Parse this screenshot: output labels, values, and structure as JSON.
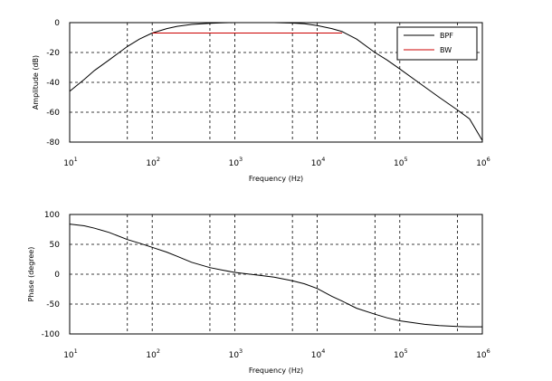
{
  "chart_data": [
    {
      "type": "line",
      "xlabel": "Frequency (Hz)",
      "ylabel": "Amplitude (dB)",
      "xscale": "log",
      "xlim": [
        10,
        1000000
      ],
      "ylim": [
        -80,
        0
      ],
      "grid": true,
      "x_ticks": [
        {
          "base": "10",
          "exp": "1"
        },
        {
          "base": "10",
          "exp": "2"
        },
        {
          "base": "10",
          "exp": "3"
        },
        {
          "base": "10",
          "exp": "4"
        },
        {
          "base": "10",
          "exp": "5"
        },
        {
          "base": "10",
          "exp": "6"
        }
      ],
      "y_ticks": [
        "0",
        "-20",
        "-40",
        "-60",
        "-80"
      ],
      "legend": {
        "position": "top-right",
        "entries": [
          "BPF",
          "BW"
        ]
      },
      "series": [
        {
          "name": "BPF",
          "color": "#000000",
          "x": [
            10,
            15,
            20,
            30,
            50,
            70,
            100,
            150,
            200,
            300,
            500,
            700,
            1000,
            2000,
            3000,
            5000,
            7000,
            10000,
            15000,
            20000,
            30000,
            50000,
            70000,
            100000,
            200000,
            300000,
            500000,
            700000,
            1000000
          ],
          "y": [
            -46,
            -38,
            -32,
            -25,
            -16,
            -11,
            -7,
            -4,
            -2.5,
            -1.2,
            -0.4,
            -0.1,
            0,
            0,
            0,
            -0.3,
            -0.7,
            -2,
            -4,
            -6,
            -11,
            -20,
            -25,
            -31,
            -43,
            -50,
            -58.5,
            -64.5,
            -79
          ]
        },
        {
          "name": "BW",
          "color": "#cc0000",
          "x": [
            100,
            20000
          ],
          "y": [
            -7,
            -7
          ]
        }
      ]
    },
    {
      "type": "line",
      "xlabel": "Frequency (Hz)",
      "ylabel": "Phase (degree)",
      "xscale": "log",
      "xlim": [
        10,
        1000000
      ],
      "ylim": [
        -100,
        100
      ],
      "grid": true,
      "x_ticks": [
        {
          "base": "10",
          "exp": "1"
        },
        {
          "base": "10",
          "exp": "2"
        },
        {
          "base": "10",
          "exp": "3"
        },
        {
          "base": "10",
          "exp": "4"
        },
        {
          "base": "10",
          "exp": "5"
        },
        {
          "base": "10",
          "exp": "6"
        }
      ],
      "y_ticks": [
        "100",
        "50",
        "0",
        "-50",
        "-100"
      ],
      "series": [
        {
          "color": "#000000",
          "x": [
            10,
            15,
            20,
            30,
            50,
            70,
            100,
            150,
            200,
            300,
            500,
            700,
            1000,
            2000,
            3000,
            5000,
            7000,
            10000,
            15000,
            20000,
            30000,
            50000,
            70000,
            100000,
            200000,
            300000,
            500000,
            700000,
            1000000
          ],
          "y": [
            84,
            81,
            77,
            70,
            58,
            52,
            45,
            37,
            30,
            20,
            11,
            7,
            3,
            -2,
            -5,
            -11,
            -16,
            -24,
            -37,
            -45,
            -57,
            -67,
            -73,
            -78,
            -84,
            -86,
            -87.5,
            -88,
            -88
          ]
        }
      ]
    }
  ]
}
